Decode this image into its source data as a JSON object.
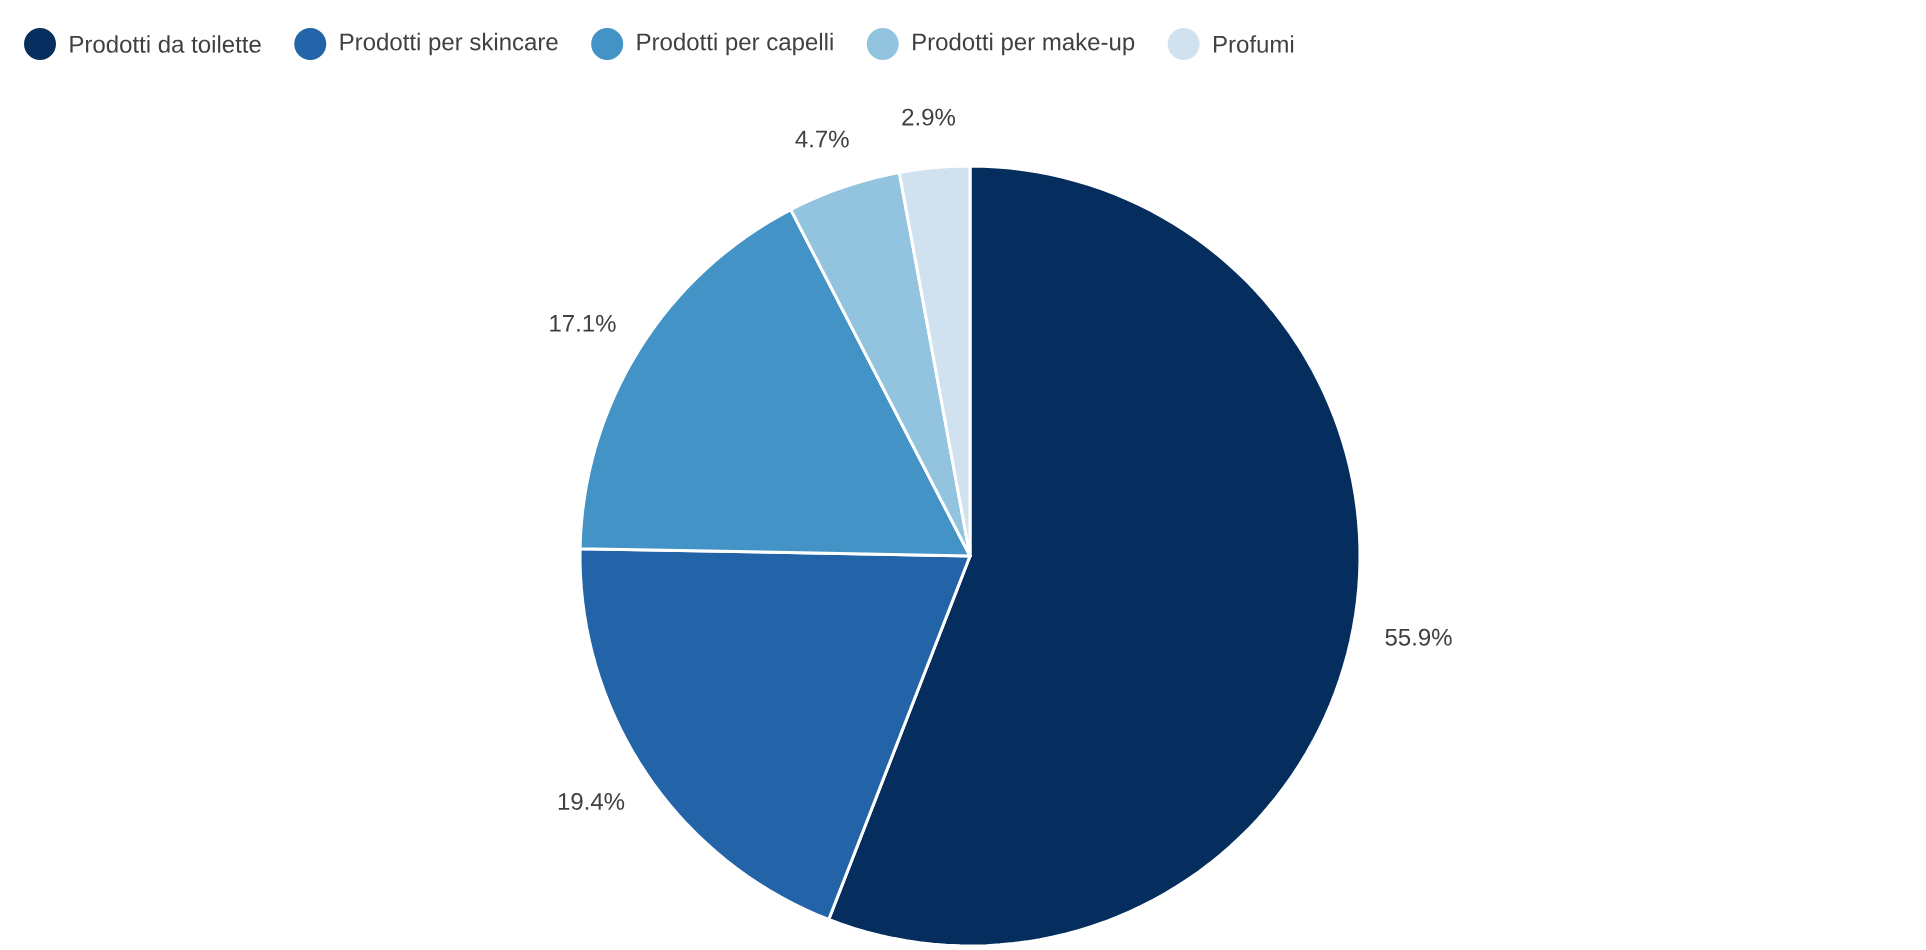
{
  "chart_data": {
    "type": "pie",
    "categories": [
      "Prodotti da toilette",
      "Prodotti per skincare",
      "Prodotti per capelli",
      "Prodotti per make-up",
      "Profumi"
    ],
    "values": [
      55.9,
      19.4,
      17.1,
      4.7,
      2.9
    ],
    "value_labels": [
      "55.9%",
      "19.4%",
      "17.1%",
      "4.7%",
      "2.9%"
    ],
    "colors": [
      "#052e5e",
      "#2363a8",
      "#4393c6",
      "#93c4df",
      "#d0e2f0"
    ],
    "legend": "top"
  }
}
